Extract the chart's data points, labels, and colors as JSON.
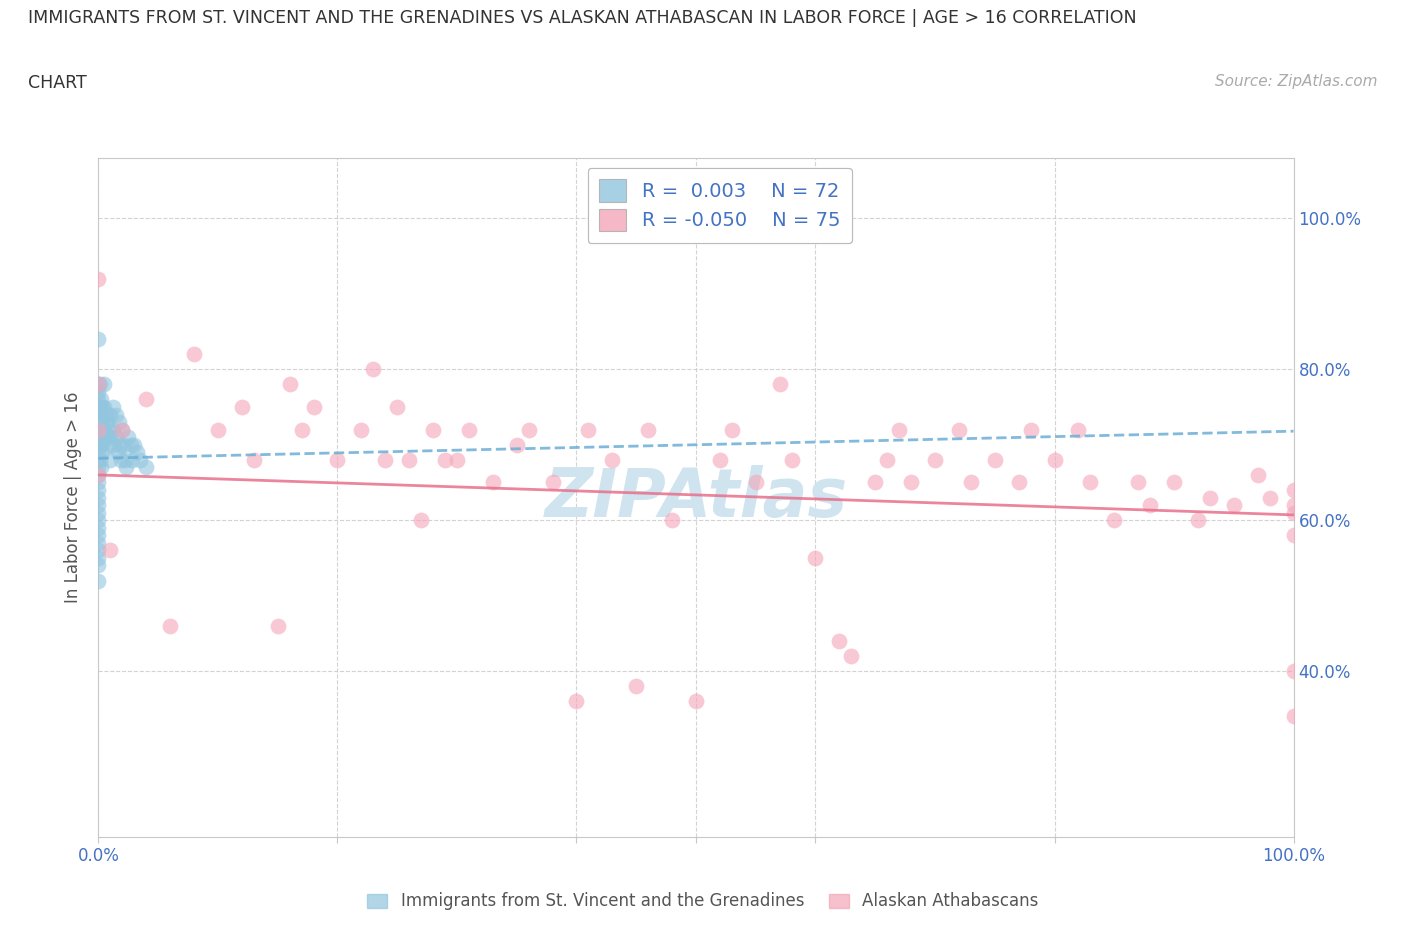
{
  "title_line1": "IMMIGRANTS FROM ST. VINCENT AND THE GRENADINES VS ALASKAN ATHABASCAN IN LABOR FORCE | AGE > 16 CORRELATION",
  "title_line2": "CHART",
  "source_text": "Source: ZipAtlas.com",
  "ylabel": "In Labor Force | Age > 16",
  "xmin": 0.0,
  "xmax": 1.0,
  "ymin": 0.18,
  "ymax": 1.08,
  "color_blue": "#92c5de",
  "color_pink": "#f4a6b8",
  "color_blue_line": "#6baed6",
  "color_pink_line": "#e8708a",
  "color_tick_label": "#4472c4",
  "color_grid": "#c8c8c8",
  "color_spine": "#c8c8c8",
  "watermark_color": "#d0e4f0",
  "blue_line_start_y": 0.682,
  "blue_line_end_y": 0.718,
  "pink_line_start_y": 0.66,
  "pink_line_end_y": 0.607,
  "blue_x": [
    0.0,
    0.0,
    0.0,
    0.0,
    0.0,
    0.0,
    0.0,
    0.0,
    0.0,
    0.0,
    0.0,
    0.0,
    0.0,
    0.0,
    0.0,
    0.0,
    0.0,
    0.0,
    0.0,
    0.0,
    0.0,
    0.0,
    0.0,
    0.0,
    0.0,
    0.0,
    0.0,
    0.001,
    0.001,
    0.001,
    0.001,
    0.001,
    0.002,
    0.002,
    0.002,
    0.002,
    0.003,
    0.003,
    0.003,
    0.004,
    0.004,
    0.005,
    0.005,
    0.005,
    0.006,
    0.006,
    0.007,
    0.008,
    0.009,
    0.01,
    0.01,
    0.01,
    0.012,
    0.012,
    0.013,
    0.015,
    0.015,
    0.016,
    0.017,
    0.018,
    0.019,
    0.02,
    0.021,
    0.022,
    0.023,
    0.025,
    0.027,
    0.028,
    0.03,
    0.032,
    0.035,
    0.04
  ],
  "blue_y": [
    0.84,
    0.78,
    0.77,
    0.76,
    0.75,
    0.74,
    0.73,
    0.72,
    0.71,
    0.7,
    0.69,
    0.68,
    0.67,
    0.66,
    0.65,
    0.64,
    0.63,
    0.62,
    0.61,
    0.6,
    0.59,
    0.58,
    0.57,
    0.56,
    0.55,
    0.54,
    0.52,
    0.78,
    0.75,
    0.72,
    0.7,
    0.68,
    0.76,
    0.73,
    0.7,
    0.67,
    0.75,
    0.72,
    0.69,
    0.74,
    0.71,
    0.78,
    0.75,
    0.72,
    0.74,
    0.71,
    0.73,
    0.72,
    0.7,
    0.74,
    0.71,
    0.68,
    0.75,
    0.72,
    0.7,
    0.74,
    0.71,
    0.69,
    0.73,
    0.7,
    0.68,
    0.72,
    0.7,
    0.68,
    0.67,
    0.71,
    0.7,
    0.68,
    0.7,
    0.69,
    0.68,
    0.67
  ],
  "pink_x": [
    0.0,
    0.0,
    0.0,
    0.0,
    0.01,
    0.02,
    0.04,
    0.06,
    0.08,
    0.1,
    0.12,
    0.13,
    0.15,
    0.16,
    0.17,
    0.18,
    0.2,
    0.22,
    0.23,
    0.24,
    0.25,
    0.26,
    0.27,
    0.28,
    0.29,
    0.3,
    0.31,
    0.33,
    0.35,
    0.36,
    0.38,
    0.4,
    0.41,
    0.43,
    0.45,
    0.46,
    0.48,
    0.5,
    0.52,
    0.53,
    0.55,
    0.57,
    0.58,
    0.6,
    0.62,
    0.63,
    0.65,
    0.66,
    0.67,
    0.68,
    0.7,
    0.72,
    0.73,
    0.75,
    0.77,
    0.78,
    0.8,
    0.82,
    0.83,
    0.85,
    0.87,
    0.88,
    0.9,
    0.92,
    0.93,
    0.95,
    0.97,
    0.98,
    1.0,
    1.0,
    1.0,
    1.0,
    1.0,
    1.0
  ],
  "pink_y": [
    0.66,
    0.72,
    0.78,
    0.92,
    0.56,
    0.72,
    0.76,
    0.46,
    0.82,
    0.72,
    0.75,
    0.68,
    0.46,
    0.78,
    0.72,
    0.75,
    0.68,
    0.72,
    0.8,
    0.68,
    0.75,
    0.68,
    0.6,
    0.72,
    0.68,
    0.68,
    0.72,
    0.65,
    0.7,
    0.72,
    0.65,
    0.36,
    0.72,
    0.68,
    0.38,
    0.72,
    0.6,
    0.36,
    0.68,
    0.72,
    0.65,
    0.78,
    0.68,
    0.55,
    0.44,
    0.42,
    0.65,
    0.68,
    0.72,
    0.65,
    0.68,
    0.72,
    0.65,
    0.68,
    0.65,
    0.72,
    0.68,
    0.72,
    0.65,
    0.6,
    0.65,
    0.62,
    0.65,
    0.6,
    0.63,
    0.62,
    0.66,
    0.63,
    0.58,
    0.64,
    0.61,
    0.34,
    0.62,
    0.4
  ]
}
